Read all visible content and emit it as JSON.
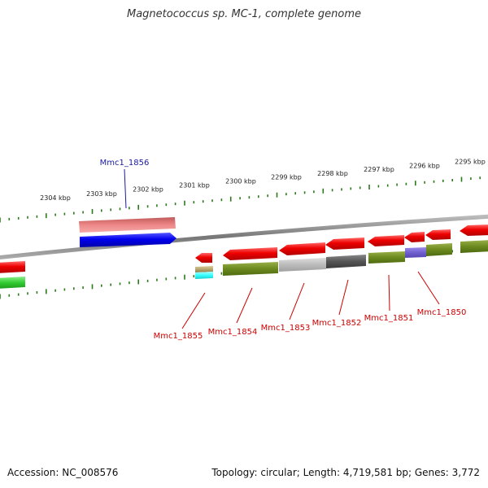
{
  "title": "Magnetococcus sp. MC-1, complete genome",
  "footer": {
    "accession": "Accession: NC_008576",
    "summary": "Topology: circular; Length: 4,719,581 bp; Genes: 3,772"
  },
  "ruler": {
    "labels": [
      "2304 kbp",
      "2303 kbp",
      "2302 kbp",
      "2301 kbp",
      "2300 kbp",
      "2299 kbp",
      "2298 kbp",
      "2297 kbp",
      "2296 kbp",
      "2295 kbp"
    ]
  },
  "gene_labels": {
    "selected": "Mmc1_1856",
    "others": [
      "Mmc1_1855",
      "Mmc1_1854",
      "Mmc1_1853",
      "Mmc1_1852",
      "Mmc1_1851",
      "Mmc1_1850"
    ]
  },
  "colors": {
    "selected_label": "#1a1aa0",
    "gene_label": "#cc0000",
    "cds": "#ee0000",
    "selected_cds": "#0000ee",
    "selected_feature": "#ee8080",
    "ruler": "#2a7a1a",
    "backbone": "#808080",
    "cog_olive": "#6b8a1e",
    "cog_light_grey": "#bbbbbb",
    "cog_dark_grey": "#555555",
    "cog_purple": "#7060d0",
    "cog_green": "#33cc33",
    "cog_cyan": "#33ffff",
    "cog_tan": "#b8a870"
  }
}
